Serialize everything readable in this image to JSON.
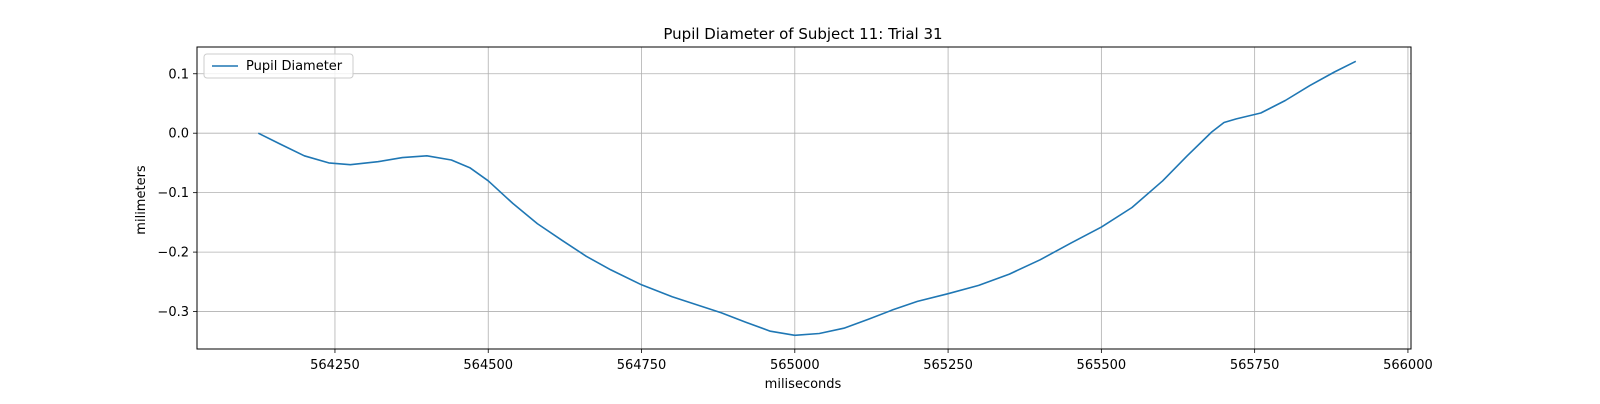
{
  "chart_data": {
    "type": "line",
    "title": "Pupil Diameter of Subject 11: Trial 31",
    "xlabel": "miliseconds",
    "ylabel": "milimeters",
    "xlim": [
      564025,
      566005
    ],
    "ylim": [
      -0.363,
      0.145
    ],
    "xticks": [
      564250,
      564500,
      564750,
      565000,
      565250,
      565500,
      565750,
      566000
    ],
    "yticks": [
      0.1,
      0.0,
      -0.1,
      -0.2,
      -0.3
    ],
    "xtick_labels": [
      "564250",
      "564500",
      "564750",
      "565000",
      "565250",
      "565500",
      "565750",
      "566000"
    ],
    "ytick_labels": [
      "0.1",
      "0.0",
      "−0.1",
      "−0.2",
      "−0.3"
    ],
    "grid": true,
    "legend_position": "top-left",
    "series": [
      {
        "name": "Pupil Diameter",
        "color": "#1f77b4",
        "x": [
          564125,
          564160,
          564200,
          564240,
          564275,
          564320,
          564360,
          564400,
          564440,
          564470,
          564500,
          564540,
          564580,
          564620,
          564660,
          564700,
          564750,
          564800,
          564850,
          564880,
          564920,
          564960,
          565000,
          565040,
          565080,
          565120,
          565160,
          565200,
          565250,
          565300,
          565350,
          565400,
          565450,
          565500,
          565550,
          565600,
          565640,
          565680,
          565700,
          565720,
          565760,
          565800,
          565840,
          565880,
          565915
        ],
        "y": [
          0.0,
          -0.018,
          -0.038,
          -0.05,
          -0.053,
          -0.048,
          -0.041,
          -0.038,
          -0.045,
          -0.058,
          -0.08,
          -0.118,
          -0.152,
          -0.18,
          -0.207,
          -0.23,
          -0.255,
          -0.275,
          -0.292,
          -0.302,
          -0.318,
          -0.333,
          -0.34,
          -0.337,
          -0.328,
          -0.313,
          -0.297,
          -0.283,
          -0.27,
          -0.256,
          -0.237,
          -0.213,
          -0.185,
          -0.158,
          -0.125,
          -0.08,
          -0.038,
          0.002,
          0.018,
          0.024,
          0.034,
          0.055,
          0.08,
          0.103,
          0.121
        ]
      }
    ]
  }
}
